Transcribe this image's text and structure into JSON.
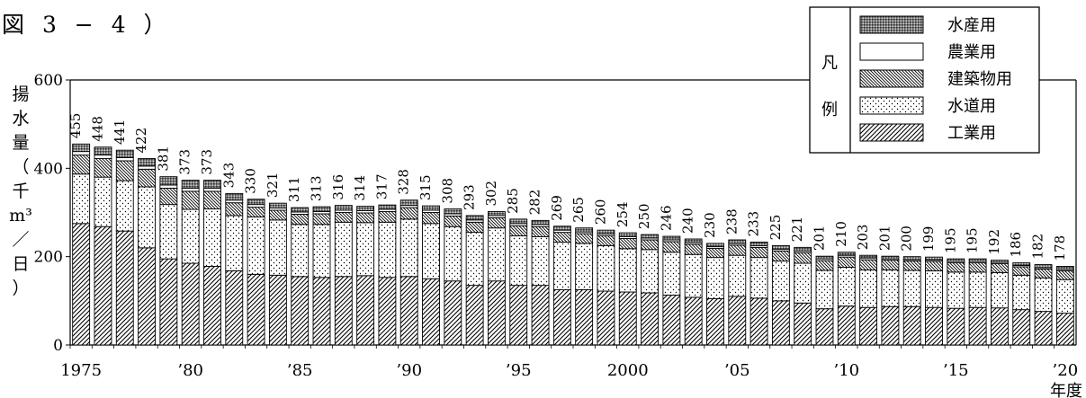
{
  "figure_label": "図 3 − 4 ）",
  "chart_data": {
    "type": "bar",
    "stacked": true,
    "ylabel_chars": [
      "揚",
      "水",
      "量",
      "（",
      "千",
      "m³",
      "／",
      "日",
      "）"
    ],
    "xlabel": "年度",
    "ylim": [
      0,
      600
    ],
    "yticks": [
      0,
      200,
      400,
      600
    ],
    "years": [
      1975,
      1976,
      1977,
      1978,
      1979,
      1980,
      1981,
      1982,
      1983,
      1984,
      1985,
      1986,
      1987,
      1988,
      1989,
      1990,
      1991,
      1992,
      1993,
      1994,
      1995,
      1996,
      1997,
      1998,
      1999,
      2000,
      2001,
      2002,
      2003,
      2004,
      2005,
      2006,
      2007,
      2008,
      2009,
      2010,
      2011,
      2012,
      2013,
      2014,
      2015,
      2016,
      2017,
      2018,
      2019,
      2020
    ],
    "xtick_labels": [
      {
        "year": 1975,
        "label": "1975"
      },
      {
        "year": 1980,
        "label": "’80"
      },
      {
        "year": 1985,
        "label": "’85"
      },
      {
        "year": 1990,
        "label": "’90"
      },
      {
        "year": 1995,
        "label": "’95"
      },
      {
        "year": 2000,
        "label": "2000"
      },
      {
        "year": 2005,
        "label": "’05"
      },
      {
        "year": 2010,
        "label": "’10"
      },
      {
        "year": 2015,
        "label": "’15"
      },
      {
        "year": 2020,
        "label": "’20"
      }
    ],
    "totals": [
      455,
      448,
      441,
      422,
      381,
      373,
      373,
      343,
      330,
      321,
      311,
      313,
      316,
      314,
      317,
      328,
      315,
      308,
      293,
      302,
      285,
      282,
      269,
      265,
      260,
      254,
      250,
      246,
      240,
      230,
      238,
      233,
      225,
      221,
      201,
      210,
      203,
      201,
      200,
      199,
      195,
      195,
      192,
      186,
      182,
      178
    ],
    "series": [
      {
        "name": "工業用",
        "pattern": "diag",
        "values": [
          275,
          268,
          258,
          220,
          195,
          185,
          178,
          168,
          160,
          158,
          155,
          153,
          155,
          157,
          153,
          155,
          150,
          145,
          135,
          145,
          135,
          135,
          125,
          125,
          122,
          120,
          118,
          113,
          108,
          105,
          110,
          106,
          100,
          95,
          82,
          88,
          85,
          87,
          87,
          85,
          83,
          85,
          84,
          80,
          76,
          72
        ]
      },
      {
        "name": "水道用",
        "pattern": "dots",
        "values": [
          112,
          112,
          114,
          138,
          123,
          122,
          130,
          125,
          130,
          125,
          118,
          120,
          123,
          120,
          125,
          130,
          125,
          123,
          120,
          120,
          112,
          110,
          108,
          105,
          103,
          98,
          98,
          97,
          97,
          93,
          93,
          92,
          90,
          90,
          87,
          88,
          85,
          83,
          82,
          83,
          82,
          80,
          80,
          78,
          76,
          76
        ]
      },
      {
        "name": "建築物用",
        "pattern": "hatch",
        "values": [
          43,
          42,
          45,
          40,
          37,
          41,
          40,
          29,
          22,
          22,
          23,
          24,
          22,
          22,
          24,
          26,
          25,
          24,
          23,
          23,
          23,
          23,
          22,
          22,
          22,
          23,
          22,
          24,
          23,
          21,
          23,
          23,
          23,
          24,
          22,
          23,
          23,
          22,
          21,
          21,
          21,
          21,
          20,
          19,
          20,
          20
        ]
      },
      {
        "name": "農業用",
        "pattern": "blank",
        "values": [
          8,
          8,
          7,
          7,
          7,
          7,
          7,
          6,
          6,
          5,
          5,
          5,
          5,
          5,
          5,
          5,
          5,
          5,
          5,
          5,
          5,
          5,
          5,
          4,
          4,
          4,
          4,
          4,
          4,
          4,
          4,
          4,
          4,
          4,
          4,
          4,
          4,
          3,
          3,
          3,
          3,
          3,
          3,
          3,
          3,
          3
        ]
      },
      {
        "name": "水産用",
        "pattern": "cross",
        "values": [
          17,
          18,
          17,
          17,
          19,
          18,
          18,
          15,
          12,
          11,
          10,
          11,
          11,
          10,
          10,
          12,
          10,
          11,
          10,
          9,
          10,
          9,
          9,
          9,
          9,
          9,
          8,
          8,
          8,
          7,
          8,
          8,
          8,
          8,
          6,
          7,
          6,
          6,
          7,
          7,
          6,
          6,
          5,
          6,
          7,
          7
        ]
      }
    ],
    "legend": {
      "title_chars": [
        "凡",
        "例"
      ],
      "placement": "top-right",
      "order": [
        "水産用",
        "農業用",
        "建築物用",
        "水道用",
        "工業用"
      ]
    }
  }
}
